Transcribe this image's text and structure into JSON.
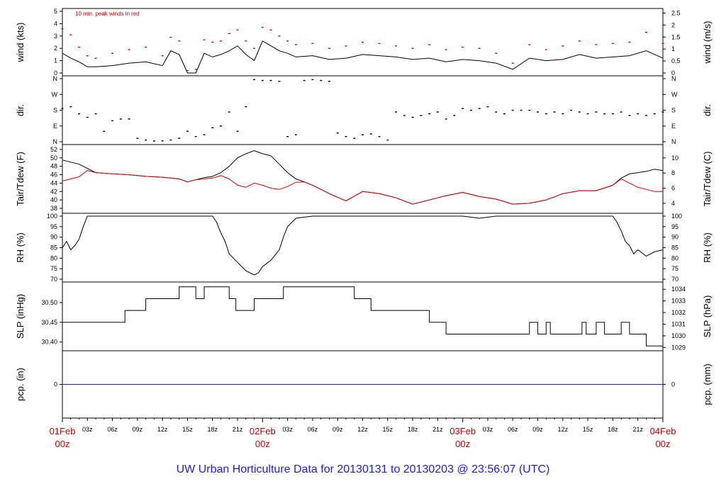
{
  "title": "UW Urban Horticulture Data for 20130131  to  20130203 @ 23:56:07  (UTC)",
  "colors": {
    "black": "#000000",
    "red": "#dd0000",
    "blue": "#2222cc",
    "title": "#1a1aff"
  },
  "chart_data": {
    "type": "line",
    "time_hours": [
      0,
      72
    ],
    "x_labels_red": [
      {
        "h": 0,
        "top": "01Feb",
        "bot": "00z"
      },
      {
        "h": 24,
        "top": "02Feb",
        "bot": "00z"
      },
      {
        "h": 48,
        "top": "03Feb",
        "bot": "00z"
      },
      {
        "h": 72,
        "top": "04Feb",
        "bot": "00z"
      }
    ],
    "x_labels_black": [
      "03z",
      "06z",
      "09z",
      "12z",
      "15z",
      "18z",
      "21z"
    ],
    "panels": [
      {
        "id": "wind",
        "left_label": "wind (kts)",
        "right_label": "wind (m/s)",
        "left_ticks": [
          "0",
          "1",
          "2",
          "3",
          "4",
          "5"
        ],
        "left_range": [
          0,
          5
        ],
        "right_ticks": [
          "0",
          "0.5",
          "1",
          "1.5",
          "2",
          "2.5"
        ],
        "right_range": [
          0,
          2.572
        ],
        "note": "10 min. peak winds in red",
        "series": [
          {
            "name": "wind",
            "color": "black",
            "kind": "line",
            "x": [
              0,
              1,
              2,
              3,
              4,
              6,
              8,
              10,
              12,
              13,
              14,
              15,
              16,
              17,
              18,
              19,
              20,
              21,
              22,
              23,
              24,
              25,
              26,
              27,
              28,
              30,
              32,
              34,
              36,
              38,
              40,
              42,
              44,
              46,
              48,
              50,
              52,
              54,
              56,
              58,
              60,
              62,
              64,
              66,
              68,
              70,
              72
            ],
            "y": [
              1.6,
              1.2,
              0.9,
              0.5,
              0.5,
              0.6,
              0.8,
              0.9,
              0.6,
              1.8,
              1.5,
              0.0,
              0.0,
              1.6,
              1.3,
              1.5,
              1.8,
              2.2,
              1.5,
              1.0,
              2.6,
              2.2,
              1.8,
              1.6,
              1.3,
              1.4,
              1.1,
              1.2,
              1.5,
              1.4,
              1.3,
              1.1,
              1.2,
              0.9,
              1.1,
              1.0,
              0.8,
              0.3,
              1.2,
              1.0,
              1.1,
              1.5,
              1.2,
              1.3,
              1.4,
              1.8,
              1.2
            ]
          },
          {
            "name": "peak",
            "color": "red",
            "kind": "dots",
            "x": [
              0,
              1,
              2,
              3,
              4,
              6,
              8,
              10,
              12,
              13,
              14,
              15,
              16,
              17,
              18,
              19,
              20,
              21,
              22,
              23,
              24,
              25,
              26,
              27,
              28,
              30,
              32,
              34,
              36,
              38,
              40,
              42,
              44,
              46,
              48,
              50,
              52,
              54,
              56,
              58,
              60,
              62,
              64,
              66,
              68,
              70,
              72
            ],
            "y": [
              3.6,
              3.1,
              2.1,
              1.4,
              1.2,
              1.6,
              1.9,
              2.1,
              1.4,
              2.9,
              2.6,
              0.2,
              0.3,
              2.7,
              2.5,
              2.6,
              3.2,
              3.5,
              2.6,
              2.0,
              3.7,
              3.5,
              3.0,
              2.6,
              2.3,
              2.4,
              2.0,
              2.2,
              2.5,
              2.4,
              2.2,
              2.0,
              2.3,
              1.9,
              2.1,
              2.0,
              1.6,
              0.8,
              2.3,
              1.9,
              2.2,
              2.6,
              2.3,
              2.4,
              2.5,
              3.3,
              2.4
            ]
          }
        ]
      },
      {
        "id": "dir",
        "left_label": "dir.",
        "right_label": "dir.",
        "left_ticks": [
          "N",
          "E",
          "S",
          "W",
          "N"
        ],
        "left_range": [
          0,
          360
        ],
        "right_ticks": [
          "N",
          "E",
          "S",
          "W",
          "N"
        ],
        "right_range": [
          0,
          360
        ],
        "series": [
          {
            "name": "direction",
            "color": "black",
            "kind": "dots",
            "x": [
              0,
              1,
              2,
              3,
              4,
              5,
              6,
              7,
              8,
              9,
              10,
              11,
              12,
              13,
              14,
              15,
              16,
              17,
              18,
              19,
              20,
              21,
              22,
              23,
              24,
              25,
              26,
              27,
              28,
              29,
              30,
              31,
              32,
              33,
              34,
              35,
              36,
              37,
              38,
              39,
              40,
              41,
              42,
              43,
              44,
              45,
              46,
              47,
              48,
              49,
              50,
              51,
              52,
              53,
              54,
              55,
              56,
              57,
              58,
              59,
              60,
              61,
              62,
              63,
              64,
              65,
              66,
              67,
              68,
              69,
              70,
              71,
              72
            ],
            "y": [
              190,
              200,
              160,
              140,
              160,
              60,
              120,
              130,
              130,
              20,
              10,
              5,
              5,
              10,
              20,
              60,
              30,
              40,
              80,
              90,
              170,
              60,
              200,
              355,
              350,
              350,
              345,
              30,
              40,
              350,
              355,
              350,
              345,
              50,
              30,
              20,
              40,
              45,
              30,
              10,
              170,
              150,
              140,
              150,
              160,
              170,
              130,
              150,
              190,
              180,
              190,
              200,
              170,
              160,
              180,
              180,
              180,
              170,
              160,
              170,
              160,
              180,
              170,
              160,
              170,
              160,
              160,
              170,
              150,
              160,
              150,
              160,
              170
            ]
          }
        ]
      },
      {
        "id": "temp",
        "left_label": "Tair/Tdew (F)",
        "right_label": "Tair/Tdew (C)",
        "left_ticks": [
          "38",
          "40",
          "42",
          "44",
          "46",
          "48",
          "50",
          "52"
        ],
        "left_range": [
          37.5,
          52.5
        ],
        "right_ticks": [
          "4",
          "6",
          "8",
          "10"
        ],
        "right_range": [
          3.06,
          11.39
        ],
        "series": [
          {
            "name": "Tair",
            "color": "black",
            "kind": "line",
            "x": [
              0,
              1,
              2,
              3,
              4,
              6,
              8,
              10,
              12,
              14,
              15,
              16,
              17,
              18,
              19,
              20,
              21,
              22,
              23,
              24,
              25,
              26,
              27,
              28,
              29,
              30,
              32,
              34,
              36,
              38,
              40,
              42,
              44,
              46,
              48,
              50,
              52,
              54,
              56,
              58,
              60,
              62,
              64,
              66,
              67,
              68,
              69,
              70,
              71,
              72
            ],
            "y": [
              49.5,
              49.0,
              48.5,
              47.5,
              46.5,
              46.2,
              46.0,
              45.6,
              45.4,
              45.0,
              44.3,
              44.8,
              45.3,
              45.6,
              46.5,
              48.0,
              50.0,
              51.0,
              51.7,
              51.0,
              50.5,
              48.5,
              46.5,
              45.0,
              44.3,
              43.5,
              41.5,
              39.8,
              42.0,
              41.5,
              40.5,
              39.0,
              40.0,
              41.0,
              41.8,
              40.8,
              40.2,
              39.0,
              39.2,
              40.0,
              41.5,
              42.2,
              42.2,
              43.5,
              45.2,
              46.2,
              46.5,
              46.8,
              47.3,
              47.0
            ]
          },
          {
            "name": "Tdew",
            "color": "red",
            "kind": "line",
            "x": [
              0,
              1,
              2,
              3,
              4,
              6,
              8,
              10,
              12,
              14,
              15,
              16,
              17,
              18,
              19,
              20,
              21,
              22,
              23,
              24,
              25,
              26,
              27,
              28,
              29,
              30,
              32,
              34,
              36,
              38,
              40,
              42,
              44,
              46,
              48,
              50,
              52,
              54,
              56,
              58,
              60,
              62,
              64,
              66,
              67,
              68,
              69,
              70,
              71,
              72
            ],
            "y": [
              44.5,
              45.0,
              45.5,
              47.0,
              46.5,
              46.2,
              46.0,
              45.6,
              45.4,
              45.0,
              44.3,
              44.8,
              45.0,
              45.2,
              45.8,
              45.0,
              43.5,
              43.0,
              44.0,
              43.5,
              42.8,
              42.5,
              43.2,
              44.2,
              44.3,
              43.5,
              41.5,
              39.8,
              42.0,
              41.5,
              40.5,
              39.0,
              40.0,
              41.0,
              41.8,
              40.8,
              40.2,
              39.0,
              39.2,
              40.0,
              41.5,
              42.2,
              42.2,
              43.5,
              45.0,
              44.0,
              43.0,
              42.5,
              42.0,
              42.0
            ]
          }
        ]
      },
      {
        "id": "rh",
        "left_label": "RH (%)",
        "right_label": "RH (%)",
        "left_ticks": [
          "70",
          "75",
          "80",
          "85",
          "90",
          "95",
          "100"
        ],
        "left_range": [
          70,
          100
        ],
        "right_ticks": [
          "70",
          "75",
          "80",
          "85",
          "90",
          "95",
          "100"
        ],
        "right_range": [
          70,
          100
        ],
        "series": [
          {
            "name": "RH",
            "color": "black",
            "kind": "line",
            "x": [
              0,
              0.5,
              1,
              1.5,
              2,
              2.5,
              3,
              4,
              10,
              15,
              18,
              18.5,
              19,
              19.5,
              20,
              21,
              22,
              23,
              23.5,
              24,
              25,
              26,
              26.5,
              27,
              28,
              30,
              40,
              48,
              50,
              52,
              60,
              66,
              66.5,
              67,
              67.5,
              68,
              68.5,
              69,
              70,
              71,
              72
            ],
            "y": [
              85,
              88,
              84,
              86,
              89,
              95,
              100,
              100,
              100,
              100,
              100,
              97,
              92,
              88,
              82,
              78,
              74,
              72,
              73,
              76,
              79,
              84,
              90,
              95,
              99,
              100,
              100,
              100,
              99,
              100,
              100,
              100,
              97,
              93,
              88,
              86,
              82,
              84,
              81,
              83,
              84
            ]
          }
        ]
      },
      {
        "id": "slp",
        "left_label": "SLP (inHg)",
        "right_label": "SLP (hPa)",
        "left_ticks": [
          "30.40",
          "30.45",
          "30.50"
        ],
        "left_range": [
          30.385,
          30.545
        ],
        "right_ticks": [
          "1029",
          "1030",
          "1031",
          "1032",
          "1033",
          "1034"
        ],
        "right_range": [
          1028.96,
          1034.38
        ],
        "series": [
          {
            "name": "SLP",
            "color": "black",
            "kind": "step",
            "x": [
              0,
              7.5,
              10,
              14,
              16,
              16.8,
              17,
              20,
              20.8,
              21.5,
              23,
              24,
              26.5,
              35,
              37,
              38,
              44,
              46,
              55,
              56,
              57,
              58,
              58.5,
              62,
              62.3,
              62.8,
              64,
              65,
              66,
              67,
              68,
              70,
              72
            ],
            "y": [
              30.45,
              30.48,
              30.51,
              30.54,
              30.51,
              30.51,
              30.54,
              30.51,
              30.48,
              30.48,
              30.51,
              30.51,
              30.54,
              30.51,
              30.48,
              30.48,
              30.45,
              30.42,
              30.42,
              30.45,
              30.42,
              30.45,
              30.42,
              30.42,
              30.45,
              30.42,
              30.45,
              30.42,
              30.42,
              30.45,
              30.42,
              30.39,
              30.39
            ]
          }
        ]
      },
      {
        "id": "pcp",
        "left_label": "pcp. (in)",
        "right_label": "pcp. (mm)",
        "left_ticks": [
          "0"
        ],
        "left_range": [
          -1,
          1
        ],
        "right_ticks": [
          "0"
        ],
        "right_range": [
          -1,
          1
        ],
        "series": [
          {
            "name": "pcp",
            "color": "blue",
            "kind": "line",
            "x": [
              0,
              72
            ],
            "y": [
              0,
              0
            ]
          }
        ]
      }
    ]
  }
}
